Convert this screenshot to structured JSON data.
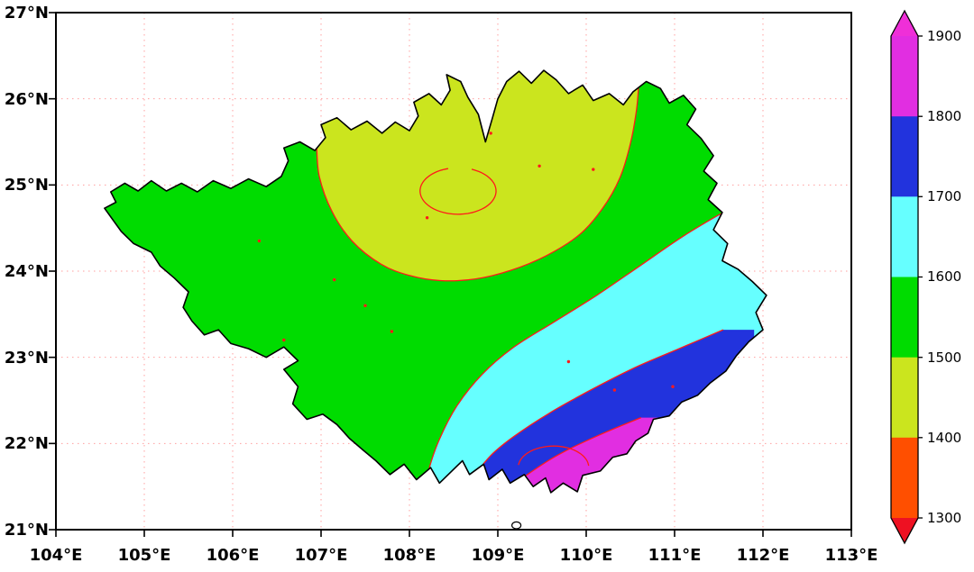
{
  "style": {
    "background": "#ffffff",
    "grid_color": "#ff9f9f",
    "contour_color": "#ff1a1a",
    "boundary_color": "#000000"
  },
  "axes": {
    "x_ticks": [
      "104°E",
      "105°E",
      "106°E",
      "107°E",
      "108°E",
      "109°E",
      "110°E",
      "111°E",
      "112°E",
      "113°E"
    ],
    "y_ticks": [
      "21°N",
      "22°N",
      "23°N",
      "24°N",
      "25°N",
      "26°N",
      "27°N"
    ],
    "x_range": [
      104,
      113.03
    ],
    "y_range": [
      21,
      27
    ]
  },
  "colorbar": {
    "labels": [
      "1900",
      "1800",
      "1700",
      "1600",
      "1500",
      "1400",
      "1300"
    ],
    "segment_colors": [
      "#e12ee1",
      "#2233dd",
      "#66ffff",
      "#00dc00",
      "#cbe51e",
      "#ff4f00"
    ],
    "arrow_top_color": "#ef2fd8",
    "arrow_bottom_color": "#ee1122"
  },
  "chart_data": {
    "type": "heatmap",
    "subtype": "filled-contour-map",
    "title": "",
    "xlabel": "",
    "ylabel": "",
    "x_ticks_deg": [
      104,
      105,
      106,
      107,
      108,
      109,
      110,
      111,
      112,
      113
    ],
    "y_ticks_deg": [
      21,
      22,
      23,
      24,
      25,
      26,
      27
    ],
    "colorbar_levels": [
      1300,
      1400,
      1500,
      1600,
      1700,
      1800,
      1900
    ],
    "level_step": 100,
    "grid": true,
    "legend_position": "right-colorbar",
    "map": {
      "base_fill": {
        "range": [
          1500,
          1600
        ],
        "color": "#00dc00"
      },
      "boundary": [
        [
          104.55,
          24.73
        ],
        [
          104.68,
          24.8
        ],
        [
          104.62,
          24.92
        ],
        [
          104.78,
          25.02
        ],
        [
          104.93,
          24.93
        ],
        [
          105.08,
          25.05
        ],
        [
          105.25,
          24.93
        ],
        [
          105.42,
          25.02
        ],
        [
          105.6,
          24.92
        ],
        [
          105.78,
          25.05
        ],
        [
          105.98,
          24.96
        ],
        [
          106.18,
          25.07
        ],
        [
          106.38,
          24.98
        ],
        [
          106.55,
          25.1
        ],
        [
          106.63,
          25.28
        ],
        [
          106.58,
          25.43
        ],
        [
          106.76,
          25.5
        ],
        [
          106.93,
          25.4
        ],
        [
          107.05,
          25.55
        ],
        [
          107.0,
          25.7
        ],
        [
          107.18,
          25.78
        ],
        [
          107.34,
          25.64
        ],
        [
          107.52,
          25.74
        ],
        [
          107.69,
          25.6
        ],
        [
          107.84,
          25.73
        ],
        [
          108.0,
          25.63
        ],
        [
          108.1,
          25.8
        ],
        [
          108.05,
          25.96
        ],
        [
          108.22,
          26.06
        ],
        [
          108.36,
          25.93
        ],
        [
          108.46,
          26.1
        ],
        [
          108.42,
          26.28
        ],
        [
          108.58,
          26.2
        ],
        [
          108.66,
          26.02
        ],
        [
          108.78,
          25.82
        ],
        [
          108.86,
          25.5
        ],
        [
          108.94,
          25.78
        ],
        [
          109.0,
          26.0
        ],
        [
          109.1,
          26.2
        ],
        [
          109.24,
          26.32
        ],
        [
          109.38,
          26.18
        ],
        [
          109.52,
          26.33
        ],
        [
          109.66,
          26.22
        ],
        [
          109.8,
          26.06
        ],
        [
          109.96,
          26.16
        ],
        [
          110.08,
          25.98
        ],
        [
          110.26,
          26.06
        ],
        [
          110.42,
          25.93
        ],
        [
          110.53,
          26.08
        ],
        [
          110.68,
          26.2
        ],
        [
          110.84,
          26.12
        ],
        [
          110.94,
          25.95
        ],
        [
          111.1,
          26.04
        ],
        [
          111.24,
          25.88
        ],
        [
          111.14,
          25.7
        ],
        [
          111.3,
          25.54
        ],
        [
          111.44,
          25.34
        ],
        [
          111.33,
          25.16
        ],
        [
          111.48,
          25.02
        ],
        [
          111.38,
          24.83
        ],
        [
          111.54,
          24.68
        ],
        [
          111.44,
          24.48
        ],
        [
          111.6,
          24.32
        ],
        [
          111.54,
          24.12
        ],
        [
          111.72,
          24.02
        ],
        [
          111.88,
          23.88
        ],
        [
          112.04,
          23.72
        ],
        [
          111.92,
          23.52
        ],
        [
          112.0,
          23.32
        ],
        [
          111.84,
          23.18
        ],
        [
          111.7,
          23.02
        ],
        [
          111.58,
          22.84
        ],
        [
          111.4,
          22.7
        ],
        [
          111.26,
          22.56
        ],
        [
          111.08,
          22.48
        ],
        [
          110.94,
          22.32
        ],
        [
          110.76,
          22.28
        ],
        [
          110.7,
          22.12
        ],
        [
          110.56,
          22.03
        ],
        [
          110.46,
          21.88
        ],
        [
          110.3,
          21.84
        ],
        [
          110.16,
          21.68
        ],
        [
          109.96,
          21.63
        ],
        [
          109.9,
          21.44
        ],
        [
          109.74,
          21.54
        ],
        [
          109.6,
          21.43
        ],
        [
          109.54,
          21.6
        ],
        [
          109.4,
          21.5
        ],
        [
          109.3,
          21.64
        ],
        [
          109.14,
          21.54
        ],
        [
          109.05,
          21.7
        ],
        [
          108.9,
          21.58
        ],
        [
          108.84,
          21.76
        ],
        [
          108.68,
          21.64
        ],
        [
          108.6,
          21.8
        ],
        [
          108.48,
          21.68
        ],
        [
          108.34,
          21.54
        ],
        [
          108.24,
          21.72
        ],
        [
          108.08,
          21.58
        ],
        [
          107.94,
          21.76
        ],
        [
          107.78,
          21.64
        ],
        [
          107.62,
          21.8
        ],
        [
          107.48,
          21.92
        ],
        [
          107.32,
          22.06
        ],
        [
          107.18,
          22.22
        ],
        [
          107.02,
          22.34
        ],
        [
          106.84,
          22.28
        ],
        [
          106.68,
          22.46
        ],
        [
          106.74,
          22.66
        ],
        [
          106.58,
          22.86
        ],
        [
          106.74,
          22.96
        ],
        [
          106.58,
          23.12
        ],
        [
          106.38,
          23.0
        ],
        [
          106.18,
          23.1
        ],
        [
          105.98,
          23.16
        ],
        [
          105.84,
          23.32
        ],
        [
          105.68,
          23.26
        ],
        [
          105.54,
          23.42
        ],
        [
          105.44,
          23.58
        ],
        [
          105.5,
          23.76
        ],
        [
          105.34,
          23.92
        ],
        [
          105.18,
          24.06
        ],
        [
          105.08,
          24.22
        ],
        [
          104.88,
          24.32
        ],
        [
          104.74,
          24.46
        ]
      ],
      "island": {
        "center": [
          109.21,
          21.05
        ]
      },
      "bands": [
        {
          "range": [
            1400,
            1500
          ],
          "color": "#cbe51e",
          "region_hint": "north-central",
          "curve": [
            [
              106.95,
              25.45
            ],
            [
              106.98,
              25.1
            ],
            [
              107.12,
              24.7
            ],
            [
              107.35,
              24.35
            ],
            [
              107.68,
              24.08
            ],
            [
              108.0,
              23.95
            ],
            [
              108.35,
              23.89
            ],
            [
              108.75,
              23.91
            ],
            [
              109.15,
              24.01
            ],
            [
              109.55,
              24.18
            ],
            [
              109.92,
              24.42
            ],
            [
              110.18,
              24.72
            ],
            [
              110.38,
              25.08
            ],
            [
              110.5,
              25.48
            ],
            [
              110.57,
              25.88
            ],
            [
              110.6,
              26.25
            ]
          ],
          "close": [
            [
              110.6,
              27.3
            ],
            [
              106.95,
              27.3
            ]
          ]
        },
        {
          "range": [
            1600,
            1700
          ],
          "color": "#66ffff",
          "region_hint": "southeast",
          "curve": [
            [
              112.1,
              24.95
            ],
            [
              111.62,
              24.72
            ],
            [
              111.12,
              24.42
            ],
            [
              110.62,
              24.07
            ],
            [
              110.12,
              23.72
            ],
            [
              109.62,
              23.4
            ],
            [
              109.17,
              23.11
            ],
            [
              108.82,
              22.8
            ],
            [
              108.54,
              22.44
            ],
            [
              108.34,
              22.05
            ],
            [
              108.22,
              21.7
            ],
            [
              108.15,
              21.35
            ]
          ],
          "close": [
            [
              108.15,
              20.7
            ],
            [
              112.6,
              20.7
            ],
            [
              112.6,
              24.95
            ]
          ]
        },
        {
          "range": [
            1700,
            1800
          ],
          "color": "#2233dd",
          "region_hint": "south-southeast",
          "curve": [
            [
              111.55,
              23.32
            ],
            [
              111.05,
              23.1
            ],
            [
              110.55,
              22.88
            ],
            [
              110.05,
              22.62
            ],
            [
              109.58,
              22.35
            ],
            [
              109.18,
              22.08
            ],
            [
              108.92,
              21.86
            ],
            [
              108.74,
              21.62
            ],
            [
              108.66,
              21.4
            ]
          ],
          "close": [
            [
              109.0,
              20.7
            ],
            [
              111.9,
              20.7
            ],
            [
              111.9,
              23.32
            ]
          ]
        },
        {
          "range": [
            1800,
            1900
          ],
          "color": "#e12ee1",
          "region_hint": "southern-coast",
          "curve": [
            [
              110.62,
              22.3
            ],
            [
              110.15,
              22.1
            ],
            [
              109.72,
              21.89
            ],
            [
              109.42,
              21.7
            ],
            [
              109.16,
              21.5
            ],
            [
              109.03,
              21.3
            ]
          ],
          "close": [
            [
              109.2,
              20.7
            ],
            [
              110.9,
              20.7
            ],
            [
              110.9,
              22.3
            ]
          ]
        }
      ],
      "contours": [
        {
          "level": 1500,
          "band_ref": 0
        },
        {
          "arc": {
            "c": [
              108.55,
              24.93
            ],
            "rx": 0.43,
            "ry": 0.27,
            "a0": 105,
            "a1": 435
          }
        },
        {
          "level": 1600,
          "band_ref": 1
        },
        {
          "level": 1700,
          "band_ref": 2
        },
        {
          "level": 1800,
          "band_ref": 3
        },
        {
          "arc": {
            "c": [
              109.63,
              21.72
            ],
            "rx": 0.4,
            "ry": 0.25,
            "a0": 5,
            "a1": 175
          }
        }
      ],
      "dots": [
        [
          107.5,
          23.6
        ],
        [
          107.8,
          23.3
        ],
        [
          107.15,
          23.9
        ],
        [
          109.47,
          25.22
        ],
        [
          110.08,
          25.18
        ],
        [
          108.2,
          24.62
        ],
        [
          110.32,
          22.62
        ],
        [
          110.98,
          22.66
        ],
        [
          106.58,
          23.2
        ],
        [
          108.92,
          25.6
        ],
        [
          109.8,
          22.95
        ],
        [
          106.3,
          24.35
        ]
      ]
    }
  }
}
